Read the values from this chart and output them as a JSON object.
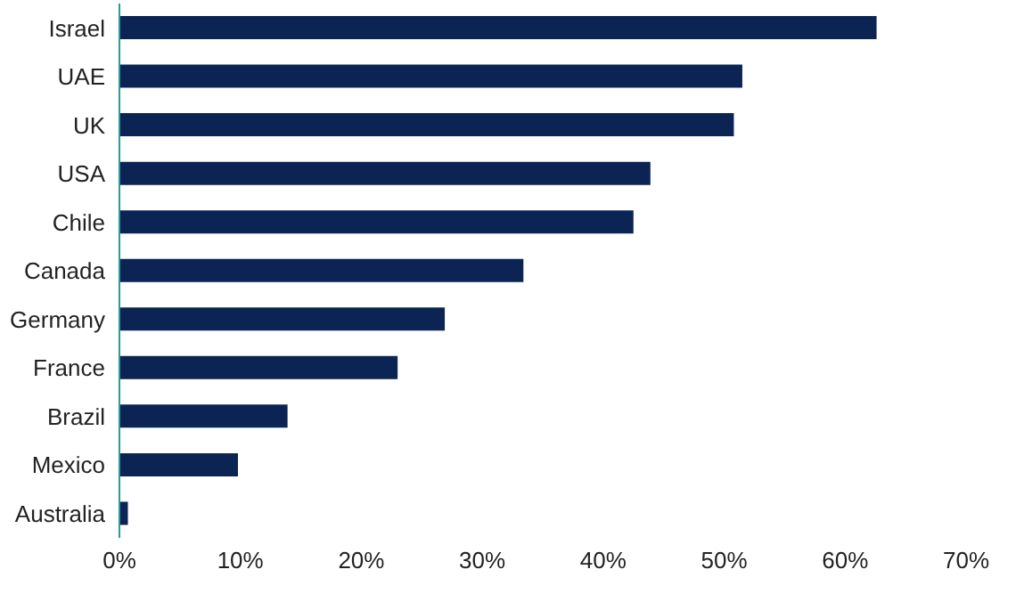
{
  "chart_data": {
    "type": "bar",
    "orientation": "horizontal",
    "categories": [
      "Israel",
      "UAE",
      "UK",
      "USA",
      "Chile",
      "Canada",
      "Germany",
      "France",
      "Brazil",
      "Mexico",
      "Australia"
    ],
    "values": [
      62.6,
      51.5,
      50.8,
      43.9,
      42.5,
      33.4,
      26.9,
      23.0,
      13.9,
      9.8,
      0.7
    ],
    "color": "#0c2454",
    "xlim": [
      0,
      70
    ],
    "xticks": [
      {
        "value": 0,
        "label": "0%"
      },
      {
        "value": 10,
        "label": "10%"
      },
      {
        "value": 20,
        "label": "20%"
      },
      {
        "value": 30,
        "label": "30%"
      },
      {
        "value": 40,
        "label": "40%"
      },
      {
        "value": 50,
        "label": "50%"
      },
      {
        "value": 60,
        "label": "60%"
      },
      {
        "value": 70,
        "label": "70%"
      }
    ],
    "grid": false,
    "legend": false
  }
}
